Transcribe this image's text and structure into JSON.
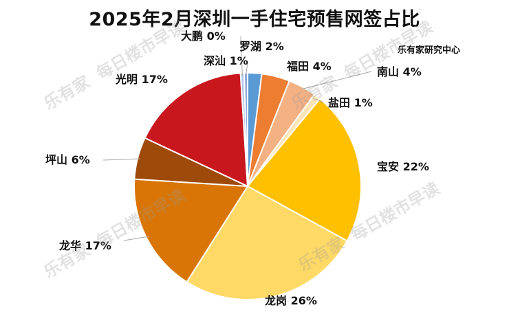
{
  "title": "2025年2月深圳一手住宅预售网签占比",
  "source": "乐有家研究中心",
  "watermark": {
    "brand": "乐有家",
    "text": "每日楼市早读"
  },
  "chart_data": {
    "type": "pie",
    "unit": "%",
    "slices": [
      {
        "label": "罗湖",
        "value": 2,
        "display": "罗湖 2%",
        "color": "#5b9bd5"
      },
      {
        "label": "福田",
        "value": 4,
        "display": "福田 4%",
        "color": "#ed7d31"
      },
      {
        "label": "南山",
        "value": 4,
        "display": "南山 4%",
        "color": "#f4b183"
      },
      {
        "label": "盐田",
        "value": 1,
        "display": "盐田 1%",
        "color": "#fbe5b6"
      },
      {
        "label": "宝安",
        "value": 22,
        "display": "宝安 22%",
        "color": "#ffc000"
      },
      {
        "label": "龙岗",
        "value": 26,
        "display": "龙岗 26%",
        "color": "#ffd966"
      },
      {
        "label": "龙华",
        "value": 17,
        "display": "龙华 17%",
        "color": "#d97506"
      },
      {
        "label": "坪山",
        "value": 6,
        "display": "坪山 6%",
        "color": "#9e4a0b"
      },
      {
        "label": "光明",
        "value": 17,
        "display": "光明 17%",
        "color": "#c9171e"
      },
      {
        "label": "大鹏",
        "value": 0.5,
        "display": "大鹏 0%",
        "color": "#b4c7e7"
      },
      {
        "label": "深汕",
        "value": 0.5,
        "display": "深汕 1%",
        "color": "#8faadc"
      }
    ]
  }
}
